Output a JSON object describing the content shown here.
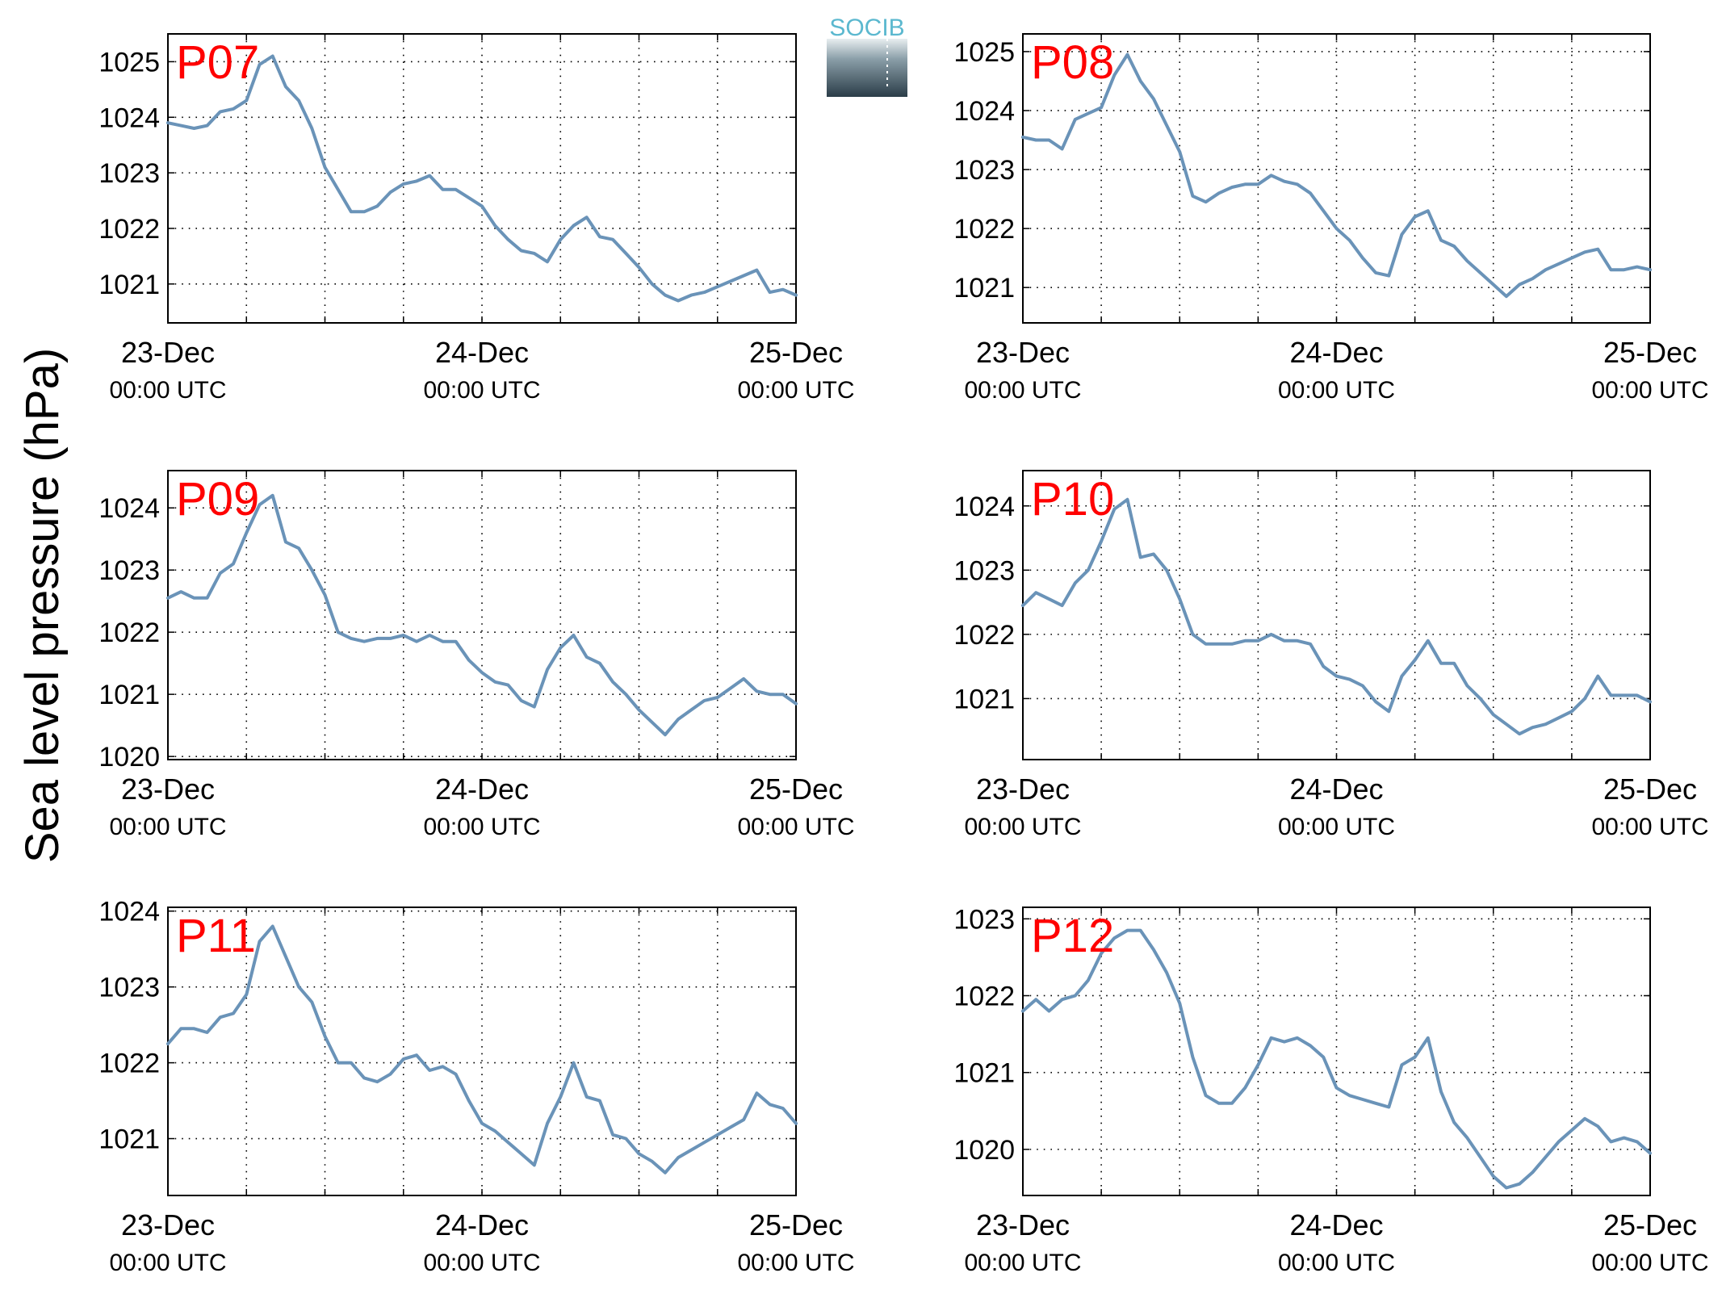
{
  "figure": {
    "ylabel": "Sea level pressure (hPa)",
    "logo_text": "SOCIB"
  },
  "chart_data": [
    {
      "type": "line",
      "label": "P07",
      "ylim": [
        1020.3,
        1025.5
      ],
      "yticks": [
        1021,
        1022,
        1023,
        1024,
        1025
      ],
      "xticks": [
        {
          "date": "23-Dec",
          "time": "00:00 UTC"
        },
        {
          "date": "24-Dec",
          "time": "00:00 UTC"
        },
        {
          "date": "25-Dec",
          "time": "00:00 UTC"
        }
      ],
      "xlim_hours": [
        0,
        48
      ],
      "grid": true,
      "color": "#6a93b8",
      "series": [
        {
          "x": [
            0,
            1,
            2,
            3,
            4,
            5,
            6,
            7,
            8,
            9,
            10,
            11,
            12,
            13,
            14,
            15,
            16,
            17,
            18,
            19,
            20,
            21,
            22,
            23,
            24,
            25,
            26,
            27,
            28,
            29,
            30,
            31,
            32,
            33,
            34,
            35,
            36,
            37,
            38,
            39,
            40,
            41,
            42,
            43,
            44,
            45,
            46,
            47,
            48
          ],
          "y": [
            1023.9,
            1023.85,
            1023.8,
            1023.85,
            1024.1,
            1024.15,
            1024.3,
            1024.95,
            1025.1,
            1024.55,
            1024.3,
            1023.8,
            1023.1,
            1022.7,
            1022.3,
            1022.3,
            1022.4,
            1022.65,
            1022.8,
            1022.85,
            1022.95,
            1022.7,
            1022.7,
            1022.55,
            1022.4,
            1022.05,
            1021.8,
            1021.6,
            1021.55,
            1021.4,
            1021.8,
            1022.05,
            1022.2,
            1021.85,
            1021.8,
            1021.55,
            1021.3,
            1021.0,
            1020.8,
            1020.7,
            1020.8,
            1020.85,
            1020.95,
            1021.05,
            1021.15,
            1021.25,
            1020.85,
            1020.9,
            1020.8
          ]
        }
      ]
    },
    {
      "type": "line",
      "label": "P08",
      "ylim": [
        1020.4,
        1025.3
      ],
      "yticks": [
        1021,
        1022,
        1023,
        1024,
        1025
      ],
      "xticks": [
        {
          "date": "23-Dec",
          "time": "00:00 UTC"
        },
        {
          "date": "24-Dec",
          "time": "00:00 UTC"
        },
        {
          "date": "25-Dec",
          "time": "00:00 UTC"
        }
      ],
      "xlim_hours": [
        0,
        48
      ],
      "grid": true,
      "color": "#6a93b8",
      "series": [
        {
          "x": [
            0,
            1,
            2,
            3,
            4,
            5,
            6,
            7,
            8,
            9,
            10,
            11,
            12,
            13,
            14,
            15,
            16,
            17,
            18,
            19,
            20,
            21,
            22,
            23,
            24,
            25,
            26,
            27,
            28,
            29,
            30,
            31,
            32,
            33,
            34,
            35,
            36,
            37,
            38,
            39,
            40,
            41,
            42,
            43,
            44,
            45,
            46,
            47,
            48
          ],
          "y": [
            1023.55,
            1023.5,
            1023.5,
            1023.35,
            1023.85,
            1023.95,
            1024.05,
            1024.6,
            1024.95,
            1024.5,
            1024.2,
            1023.75,
            1023.3,
            1022.55,
            1022.45,
            1022.6,
            1022.7,
            1022.75,
            1022.75,
            1022.9,
            1022.8,
            1022.75,
            1022.6,
            1022.3,
            1022.0,
            1021.8,
            1021.5,
            1021.25,
            1021.2,
            1021.9,
            1022.2,
            1022.3,
            1021.8,
            1021.7,
            1021.45,
            1021.25,
            1021.05,
            1020.85,
            1021.05,
            1021.15,
            1021.3,
            1021.4,
            1021.5,
            1021.6,
            1021.65,
            1021.3,
            1021.3,
            1021.35,
            1021.3
          ]
        }
      ]
    },
    {
      "type": "line",
      "label": "P09",
      "ylim": [
        1019.95,
        1024.6
      ],
      "yticks": [
        1020,
        1021,
        1022,
        1023,
        1024
      ],
      "xticks": [
        {
          "date": "23-Dec",
          "time": "00:00 UTC"
        },
        {
          "date": "24-Dec",
          "time": "00:00 UTC"
        },
        {
          "date": "25-Dec",
          "time": "00:00 UTC"
        }
      ],
      "xlim_hours": [
        0,
        48
      ],
      "grid": true,
      "color": "#6a93b8",
      "series": [
        {
          "x": [
            0,
            1,
            2,
            3,
            4,
            5,
            6,
            7,
            8,
            9,
            10,
            11,
            12,
            13,
            14,
            15,
            16,
            17,
            18,
            19,
            20,
            21,
            22,
            23,
            24,
            25,
            26,
            27,
            28,
            29,
            30,
            31,
            32,
            33,
            34,
            35,
            36,
            37,
            38,
            39,
            40,
            41,
            42,
            43,
            44,
            45,
            46,
            47,
            48
          ],
          "y": [
            1022.55,
            1022.65,
            1022.55,
            1022.55,
            1022.95,
            1023.1,
            1023.6,
            1024.05,
            1024.2,
            1023.45,
            1023.35,
            1023.0,
            1022.6,
            1022.0,
            1021.9,
            1021.85,
            1021.9,
            1021.9,
            1021.95,
            1021.85,
            1021.95,
            1021.85,
            1021.85,
            1021.55,
            1021.35,
            1021.2,
            1021.15,
            1020.9,
            1020.8,
            1021.4,
            1021.75,
            1021.95,
            1021.6,
            1021.5,
            1021.2,
            1021.0,
            1020.75,
            1020.55,
            1020.35,
            1020.6,
            1020.75,
            1020.9,
            1020.95,
            1021.1,
            1021.25,
            1021.05,
            1021.0,
            1021.0,
            1020.85
          ]
        }
      ]
    },
    {
      "type": "line",
      "label": "P10",
      "ylim": [
        1020.05,
        1024.55
      ],
      "yticks": [
        1021,
        1022,
        1023,
        1024
      ],
      "xticks": [
        {
          "date": "23-Dec",
          "time": "00:00 UTC"
        },
        {
          "date": "24-Dec",
          "time": "00:00 UTC"
        },
        {
          "date": "25-Dec",
          "time": "00:00 UTC"
        }
      ],
      "xlim_hours": [
        0,
        48
      ],
      "grid": true,
      "color": "#6a93b8",
      "series": [
        {
          "x": [
            0,
            1,
            2,
            3,
            4,
            5,
            6,
            7,
            8,
            9,
            10,
            11,
            12,
            13,
            14,
            15,
            16,
            17,
            18,
            19,
            20,
            21,
            22,
            23,
            24,
            25,
            26,
            27,
            28,
            29,
            30,
            31,
            32,
            33,
            34,
            35,
            36,
            37,
            38,
            39,
            40,
            41,
            42,
            43,
            44,
            45,
            46,
            47,
            48
          ],
          "y": [
            1022.45,
            1022.65,
            1022.55,
            1022.45,
            1022.8,
            1023.0,
            1023.45,
            1023.95,
            1024.1,
            1023.2,
            1023.25,
            1023.0,
            1022.55,
            1022.0,
            1021.85,
            1021.85,
            1021.85,
            1021.9,
            1021.9,
            1022.0,
            1021.9,
            1021.9,
            1021.85,
            1021.5,
            1021.35,
            1021.3,
            1021.2,
            1020.95,
            1020.8,
            1021.35,
            1021.6,
            1021.9,
            1021.55,
            1021.55,
            1021.2,
            1021.0,
            1020.75,
            1020.6,
            1020.45,
            1020.55,
            1020.6,
            1020.7,
            1020.8,
            1021.0,
            1021.35,
            1021.05,
            1021.05,
            1021.05,
            1020.95
          ]
        }
      ]
    },
    {
      "type": "line",
      "label": "P11",
      "ylim": [
        1020.25,
        1024.05
      ],
      "yticks": [
        1021,
        1022,
        1023,
        1024
      ],
      "xticks": [
        {
          "date": "23-Dec",
          "time": "00:00 UTC"
        },
        {
          "date": "24-Dec",
          "time": "00:00 UTC"
        },
        {
          "date": "25-Dec",
          "time": "00:00 UTC"
        }
      ],
      "xlim_hours": [
        0,
        48
      ],
      "grid": true,
      "color": "#6a93b8",
      "series": [
        {
          "x": [
            0,
            1,
            2,
            3,
            4,
            5,
            6,
            7,
            8,
            9,
            10,
            11,
            12,
            13,
            14,
            15,
            16,
            17,
            18,
            19,
            20,
            21,
            22,
            23,
            24,
            25,
            26,
            27,
            28,
            29,
            30,
            31,
            32,
            33,
            34,
            35,
            36,
            37,
            38,
            39,
            40,
            41,
            42,
            43,
            44,
            45,
            46,
            47,
            48
          ],
          "y": [
            1022.25,
            1022.45,
            1022.45,
            1022.4,
            1022.6,
            1022.65,
            1022.9,
            1023.6,
            1023.8,
            1023.4,
            1023.0,
            1022.8,
            1022.35,
            1022.0,
            1022.0,
            1021.8,
            1021.75,
            1021.85,
            1022.05,
            1022.1,
            1021.9,
            1021.95,
            1021.85,
            1021.5,
            1021.2,
            1021.1,
            1020.95,
            1020.8,
            1020.65,
            1021.2,
            1021.55,
            1022.0,
            1021.55,
            1021.5,
            1021.05,
            1021.0,
            1020.8,
            1020.7,
            1020.55,
            1020.75,
            1020.85,
            1020.95,
            1021.05,
            1021.15,
            1021.25,
            1021.6,
            1021.45,
            1021.4,
            1021.2
          ]
        }
      ]
    },
    {
      "type": "line",
      "label": "P12",
      "ylim": [
        1019.4,
        1023.15
      ],
      "yticks": [
        1020,
        1021,
        1022,
        1023
      ],
      "xticks": [
        {
          "date": "23-Dec",
          "time": "00:00 UTC"
        },
        {
          "date": "24-Dec",
          "time": "00:00 UTC"
        },
        {
          "date": "25-Dec",
          "time": "00:00 UTC"
        }
      ],
      "xlim_hours": [
        0,
        48
      ],
      "grid": true,
      "color": "#6a93b8",
      "series": [
        {
          "x": [
            0,
            1,
            2,
            3,
            4,
            5,
            6,
            7,
            8,
            9,
            10,
            11,
            12,
            13,
            14,
            15,
            16,
            17,
            18,
            19,
            20,
            21,
            22,
            23,
            24,
            25,
            26,
            27,
            28,
            29,
            30,
            31,
            32,
            33,
            34,
            35,
            36,
            37,
            38,
            39,
            40,
            41,
            42,
            43,
            44,
            45,
            46,
            47,
            48
          ],
          "y": [
            1021.8,
            1021.95,
            1021.8,
            1021.95,
            1022.0,
            1022.2,
            1022.55,
            1022.75,
            1022.85,
            1022.85,
            1022.6,
            1022.3,
            1021.9,
            1021.2,
            1020.7,
            1020.6,
            1020.6,
            1020.8,
            1021.1,
            1021.45,
            1021.4,
            1021.45,
            1021.35,
            1021.2,
            1020.8,
            1020.7,
            1020.65,
            1020.6,
            1020.55,
            1021.1,
            1021.2,
            1021.45,
            1020.75,
            1020.35,
            1020.15,
            1019.9,
            1019.65,
            1019.5,
            1019.55,
            1019.7,
            1019.9,
            1020.1,
            1020.25,
            1020.4,
            1020.3,
            1020.1,
            1020.15,
            1020.1,
            1019.95
          ]
        }
      ]
    }
  ]
}
